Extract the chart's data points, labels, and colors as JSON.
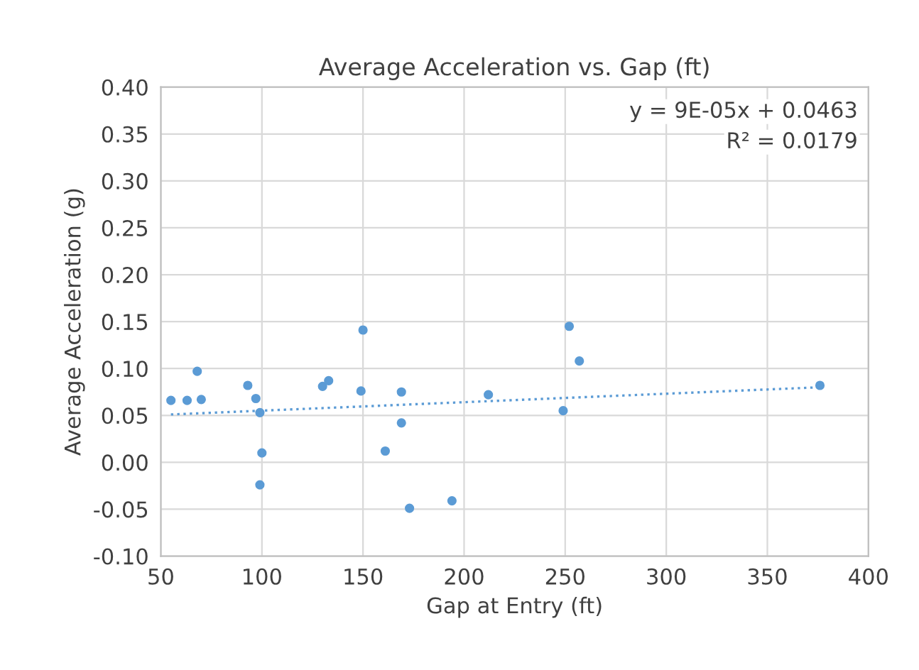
{
  "chart_data": {
    "type": "scatter",
    "title": "Average Acceleration vs. Gap (ft)",
    "xlabel": "Gap at Entry (ft)",
    "ylabel": "Average Acceleration (g)",
    "annotations": [
      "y = 9E-05x + 0.0463",
      "R² = 0.0179"
    ],
    "series": [
      {
        "color": "#5b9bd5",
        "marker": "circle",
        "x": [
          55,
          63,
          68,
          70,
          93,
          97,
          99,
          100,
          99,
          130,
          133,
          149,
          150,
          161,
          169,
          169,
          173,
          194,
          212,
          249,
          252,
          257,
          376
        ],
        "values": [
          0.066,
          0.066,
          0.097,
          0.067,
          0.082,
          0.068,
          0.053,
          0.01,
          -0.024,
          0.081,
          0.087,
          0.076,
          0.141,
          0.012,
          0.075,
          0.042,
          -0.049,
          -0.041,
          0.072,
          0.055,
          0.145,
          0.108,
          0.082
        ]
      },
      {
        "type": "line",
        "color": "#5b9bd5",
        "line_style": "dotted",
        "marker": "none",
        "x": [
          55,
          376
        ],
        "values": [
          0.051,
          0.08
        ]
      }
    ],
    "xlim": [
      50,
      400
    ],
    "xticks": [
      50,
      100,
      150,
      200,
      250,
      300,
      350,
      400
    ],
    "ylim": [
      -0.1,
      0.4
    ],
    "yticks": [
      {
        "value": -0.1,
        "label": "-0.10"
      },
      {
        "value": -0.05,
        "label": "-0.05"
      },
      {
        "value": 0,
        "label": "0.00"
      },
      {
        "value": 0.05,
        "label": "0.05"
      },
      {
        "value": 0.1,
        "label": "0.10"
      },
      {
        "value": 0.15,
        "label": "0.15"
      },
      {
        "value": 0.2,
        "label": "0.20"
      },
      {
        "value": 0.25,
        "label": "0.25"
      },
      {
        "value": 0.3,
        "label": "0.30"
      },
      {
        "value": 0.35,
        "label": "0.35"
      },
      {
        "value": 0.4,
        "label": "0.40"
      }
    ],
    "grid": true
  }
}
